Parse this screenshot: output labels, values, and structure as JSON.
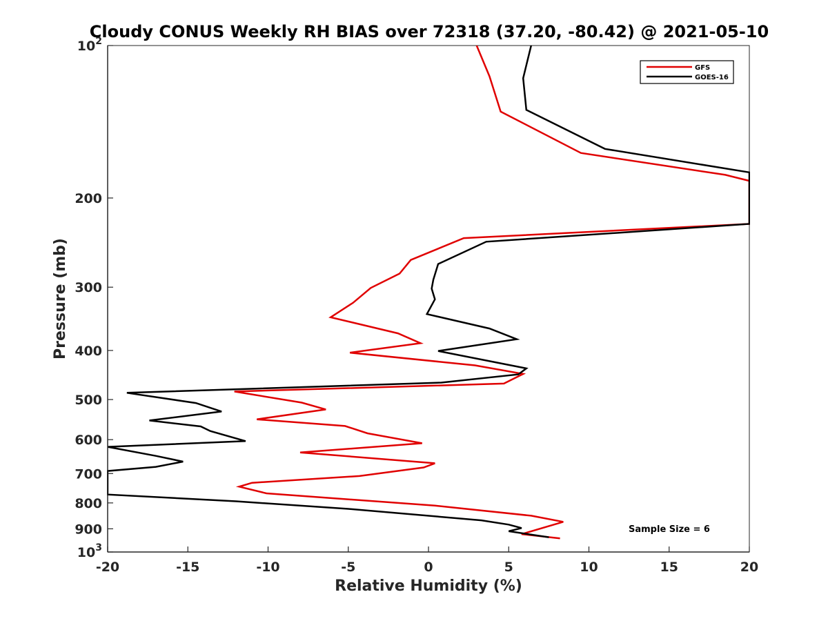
{
  "chart_data": {
    "type": "line",
    "title": "Cloudy CONUS Weekly RH BIAS over 72318 (37.20, -80.42) @ 2021-05-10",
    "xlabel": "Relative Humidity (%)",
    "ylabel": "Pressure (mb)",
    "xlim": [
      -20,
      20
    ],
    "ylim": [
      100,
      1000
    ],
    "yscale": "log",
    "yreversed": true,
    "grid": false,
    "legend_position": "top-right",
    "x_ticks": [
      -20,
      -15,
      -10,
      -5,
      0,
      5,
      10,
      15,
      20
    ],
    "x_tick_labels": [
      "-20",
      "-15",
      "-10",
      "-5",
      "0",
      "5",
      "10",
      "15",
      "20"
    ],
    "y_ticks": [
      100,
      200,
      300,
      400,
      500,
      600,
      700,
      800,
      900,
      1000
    ],
    "y_tick_labels": [
      "",
      "200",
      "300",
      "400",
      "500",
      "600",
      "700",
      "800",
      "900",
      ""
    ],
    "y_tick_label_100": {
      "base": "10",
      "exp": "2"
    },
    "y_tick_label_1000": {
      "base": "10",
      "exp": "3"
    },
    "annotation": "Sample Size = 6",
    "series": [
      {
        "name": "GFS",
        "color": "#e00000",
        "points": [
          [
            3.0,
            100
          ],
          [
            3.8,
            115
          ],
          [
            4.5,
            135
          ],
          [
            9.5,
            163
          ],
          [
            18.5,
            180
          ],
          [
            20.0,
            185
          ],
          [
            20.0,
            225
          ],
          [
            2.2,
            240
          ],
          [
            -1.1,
            265
          ],
          [
            -1.8,
            282
          ],
          [
            -3.6,
            301
          ],
          [
            -4.7,
            322
          ],
          [
            -6.1,
            344
          ],
          [
            -1.9,
            370
          ],
          [
            -0.5,
            387
          ],
          [
            -4.9,
            404
          ],
          [
            2.9,
            428
          ],
          [
            5.9,
            445
          ],
          [
            4.7,
            465
          ],
          [
            -12.1,
            482
          ],
          [
            -7.9,
            507
          ],
          [
            -6.4,
            523
          ],
          [
            -10.7,
            547
          ],
          [
            -5.2,
            564
          ],
          [
            -3.8,
            583
          ],
          [
            -0.4,
            610
          ],
          [
            -8.0,
            636
          ],
          [
            0.4,
            668
          ],
          [
            -0.3,
            681
          ],
          [
            -4.3,
            708
          ],
          [
            -11.0,
            730
          ],
          [
            -11.8,
            743
          ],
          [
            -10.1,
            766
          ],
          [
            0.4,
            810
          ],
          [
            6.4,
            848
          ],
          [
            8.4,
            872
          ],
          [
            5.8,
            922
          ],
          [
            8.2,
            940
          ]
        ]
      },
      {
        "name": "GOES-16",
        "color": "#000000",
        "points": [
          [
            6.4,
            100
          ],
          [
            5.9,
            116
          ],
          [
            6.1,
            134
          ],
          [
            11.0,
            160
          ],
          [
            20.0,
            178
          ],
          [
            20.0,
            225
          ],
          [
            3.6,
            244
          ],
          [
            0.6,
            270
          ],
          [
            0.3,
            290
          ],
          [
            0.2,
            302
          ],
          [
            0.4,
            317
          ],
          [
            -0.1,
            339
          ],
          [
            3.8,
            362
          ],
          [
            5.5,
            380
          ],
          [
            0.6,
            401
          ],
          [
            6.1,
            434
          ],
          [
            5.6,
            446
          ],
          [
            0.8,
            463
          ],
          [
            -18.8,
            485
          ],
          [
            -14.5,
            508
          ],
          [
            -12.9,
            528
          ],
          [
            -17.4,
            550
          ],
          [
            -14.2,
            565
          ],
          [
            -13.6,
            577
          ],
          [
            -11.4,
            604
          ],
          [
            -20.0,
            620
          ],
          [
            -17.0,
            646
          ],
          [
            -15.3,
            663
          ],
          [
            -17.0,
            679
          ],
          [
            -20.0,
            692
          ],
          [
            -20.0,
            770
          ],
          [
            -12.0,
            794
          ],
          [
            -5.0,
            822
          ],
          [
            3.3,
            866
          ],
          [
            5.0,
            883
          ],
          [
            5.8,
            897
          ],
          [
            5.0,
            910
          ],
          [
            7.5,
            935
          ]
        ]
      }
    ]
  }
}
